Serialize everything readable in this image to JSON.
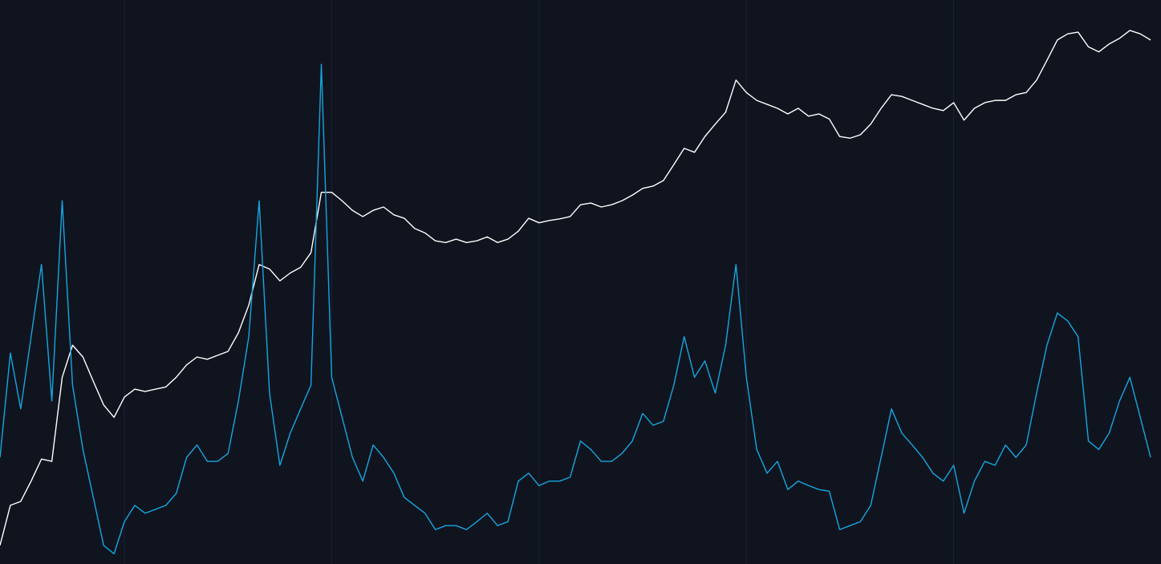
{
  "chart_data": {
    "type": "line",
    "xlim": [
      -0.6,
      5.0
    ],
    "ylim": [
      0,
      100
    ],
    "xticks": [
      0,
      1,
      2,
      3,
      4
    ],
    "grid": true,
    "background": "#10141f",
    "grid_color": "#1c2233",
    "x": [
      -0.6,
      -0.55,
      -0.5,
      -0.45,
      -0.4,
      -0.35,
      -0.3,
      -0.25,
      -0.2,
      -0.15,
      -0.1,
      -0.05,
      0,
      0.05,
      0.1,
      0.15,
      0.2,
      0.25,
      0.3,
      0.35,
      0.4,
      0.45,
      0.5,
      0.55,
      0.6,
      0.65,
      0.7,
      0.75,
      0.8,
      0.85,
      0.9,
      0.95,
      1,
      1.05,
      1.1,
      1.15,
      1.2,
      1.25,
      1.3,
      1.35,
      1.4,
      1.45,
      1.5,
      1.55,
      1.6,
      1.65,
      1.7,
      1.75,
      1.8,
      1.85,
      1.9,
      1.95,
      2,
      2.05,
      2.1,
      2.15,
      2.2,
      2.25,
      2.3,
      2.35,
      2.4,
      2.45,
      2.5,
      2.55,
      2.6,
      2.65,
      2.7,
      2.75,
      2.8,
      2.85,
      2.9,
      2.95,
      3,
      3.05,
      3.1,
      3.15,
      3.2,
      3.25,
      3.3,
      3.35,
      3.4,
      3.45,
      3.5,
      3.55,
      3.6,
      3.65,
      3.7,
      3.75,
      3.8,
      3.85,
      3.9,
      3.95,
      4,
      4.05,
      4.1,
      4.15,
      4.2,
      4.25,
      4.3,
      4.35,
      4.4,
      4.45,
      4.5,
      4.55,
      4.6,
      4.65,
      4.7,
      4.75,
      4.8,
      4.85,
      4.9,
      4.95
    ],
    "series": [
      {
        "color": "#ffffff",
        "values": [
          3.3,
          10.4,
          11.1,
          14.7,
          18.6,
          18.2,
          33.1,
          38.8,
          36.7,
          32.4,
          28.2,
          26.0,
          29.6,
          31.0,
          30.6,
          31.0,
          31.4,
          33.1,
          35.3,
          36.7,
          36.3,
          37.0,
          37.7,
          41.0,
          45.9,
          53.1,
          52.3,
          50.2,
          51.6,
          52.6,
          55.2,
          65.9,
          65.9,
          64.4,
          62.7,
          61.6,
          62.7,
          63.3,
          61.9,
          61.3,
          59.5,
          58.7,
          57.3,
          57.0,
          57.6,
          57.0,
          57.3,
          58.0,
          57.0,
          57.6,
          59.0,
          61.3,
          60.5,
          60.9,
          61.2,
          61.6,
          63.7,
          64.0,
          63.3,
          63.7,
          64.4,
          65.4,
          66.6,
          67.0,
          68.0,
          70.8,
          73.7,
          73.0,
          75.8,
          78.0,
          80.1,
          85.8,
          83.6,
          82.2,
          81.5,
          80.8,
          79.8,
          80.8,
          79.4,
          79.8,
          78.9,
          75.8,
          75.5,
          76.1,
          78.0,
          80.8,
          83.2,
          82.9,
          82.2,
          81.5,
          80.8,
          80.4,
          81.8,
          78.7,
          80.8,
          81.8,
          82.2,
          82.2,
          83.2,
          83.6,
          85.8,
          89.3,
          92.9,
          94.0,
          94.3,
          91.7,
          90.8,
          92.2,
          93.2,
          94.6,
          94.0,
          92.9
        ]
      },
      {
        "color": "#16a6e0",
        "values": [
          18.9,
          37.4,
          27.5,
          40.3,
          53.1,
          28.9,
          64.4,
          31.7,
          20.3,
          11.8,
          3.3,
          1.8,
          7.5,
          10.4,
          9.0,
          9.7,
          10.4,
          12.5,
          18.9,
          21.1,
          18.2,
          18.2,
          19.6,
          28.9,
          40.3,
          64.4,
          30.3,
          17.5,
          23.2,
          27.5,
          31.7,
          88.6,
          33.1,
          26.0,
          18.9,
          14.7,
          21.1,
          18.9,
          16.1,
          11.8,
          10.4,
          9.0,
          6.1,
          6.8,
          6.8,
          6.1,
          7.5,
          9.0,
          6.8,
          7.5,
          14.7,
          16.1,
          13.9,
          14.7,
          14.7,
          15.4,
          21.8,
          20.3,
          18.2,
          18.2,
          19.6,
          21.8,
          26.7,
          24.6,
          25.3,
          31.7,
          40.3,
          33.1,
          36.0,
          30.3,
          38.8,
          53.1,
          33.1,
          20.3,
          16.1,
          18.2,
          13.2,
          14.7,
          13.9,
          13.2,
          12.9,
          6.1,
          6.8,
          7.5,
          10.4,
          18.9,
          27.5,
          23.2,
          21.1,
          18.9,
          16.1,
          14.7,
          17.5,
          9.0,
          14.7,
          18.2,
          17.5,
          21.1,
          18.9,
          21.1,
          30.3,
          38.8,
          44.5,
          43.1,
          40.3,
          21.8,
          20.3,
          23.2,
          28.9,
          33.1,
          26.0,
          18.9
        ]
      }
    ]
  }
}
